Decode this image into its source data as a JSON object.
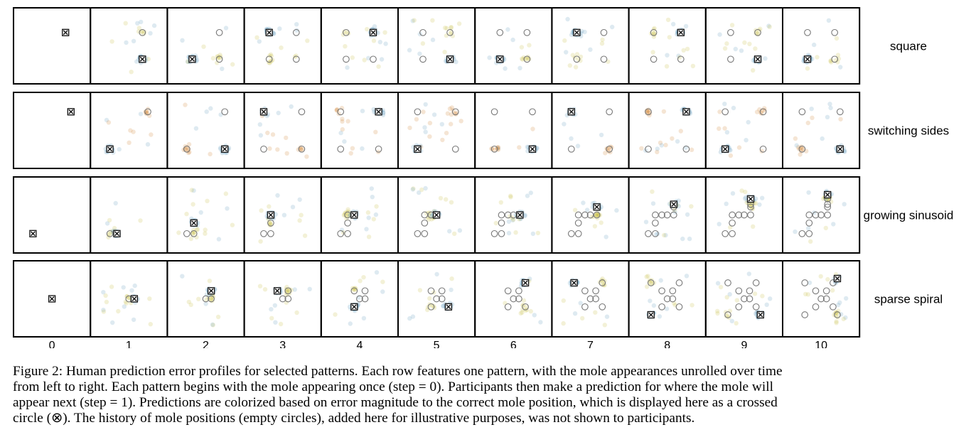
{
  "figure": {
    "steps": [
      "0",
      "1",
      "2",
      "3",
      "4",
      "5",
      "6",
      "7",
      "8",
      "9",
      "10"
    ],
    "rows": [
      {
        "label": "square",
        "target": [
          [
            0.75,
            0.25
          ],
          [
            0.75,
            0.75
          ],
          [
            0.25,
            0.75
          ],
          [
            0.25,
            0.25
          ],
          [
            0.75,
            0.25
          ],
          [
            0.75,
            0.75
          ],
          [
            0.25,
            0.75
          ],
          [
            0.25,
            0.25
          ],
          [
            0.75,
            0.25
          ],
          [
            0.75,
            0.75
          ],
          [
            0.25,
            0.75
          ]
        ],
        "hue": "#6a9fc0",
        "error_hue": "#c9c04a"
      },
      {
        "label": "switching sides",
        "target": [
          [
            0.85,
            0.15
          ],
          [
            0.15,
            0.85
          ],
          [
            0.85,
            0.85
          ],
          [
            0.15,
            0.15
          ],
          [
            0.85,
            0.15
          ],
          [
            0.15,
            0.85
          ],
          [
            0.85,
            0.85
          ],
          [
            0.15,
            0.15
          ],
          [
            0.85,
            0.15
          ],
          [
            0.15,
            0.85
          ],
          [
            0.85,
            0.85
          ]
        ],
        "hue": "#6a9fc0",
        "error_hue": "#d08a3a"
      },
      {
        "label": "growing sinusoid",
        "target": [
          [
            0.15,
            0.85
          ],
          [
            0.28,
            0.85
          ],
          [
            0.28,
            0.65
          ],
          [
            0.28,
            0.5
          ],
          [
            0.4,
            0.5
          ],
          [
            0.5,
            0.5
          ],
          [
            0.62,
            0.5
          ],
          [
            0.62,
            0.35
          ],
          [
            0.62,
            0.3
          ],
          [
            0.62,
            0.2
          ],
          [
            0.62,
            0.12
          ]
        ],
        "hue": "#6a9fc0",
        "error_hue": "#c9c04a"
      },
      {
        "label": "sparse spiral",
        "target": [
          [
            0.5,
            0.5
          ],
          [
            0.6,
            0.5
          ],
          [
            0.6,
            0.35
          ],
          [
            0.4,
            0.35
          ],
          [
            0.4,
            0.65
          ],
          [
            0.72,
            0.65
          ],
          [
            0.72,
            0.2
          ],
          [
            0.2,
            0.2
          ],
          [
            0.2,
            0.8
          ],
          [
            0.8,
            0.8
          ],
          [
            0.8,
            0.12
          ]
        ],
        "hue": "#6a9fc0",
        "error_hue": "#c9c04a"
      }
    ]
  },
  "caption": {
    "lines": [
      "Figure 2: Human prediction error profiles for selected patterns. Each row features one pattern, with the mole appearances unrolled over time",
      "from left to right. Each pattern begins with the mole appearing once (step = 0). Participants then make a prediction for where the mole will",
      "appear next (step = 1). Predictions are colorized based on error magnitude to the correct mole position, which is displayed here as a crossed",
      "circle (⊗). The history of mole positions (empty circles), added here for illustrative purposes, was not shown to participants."
    ]
  }
}
